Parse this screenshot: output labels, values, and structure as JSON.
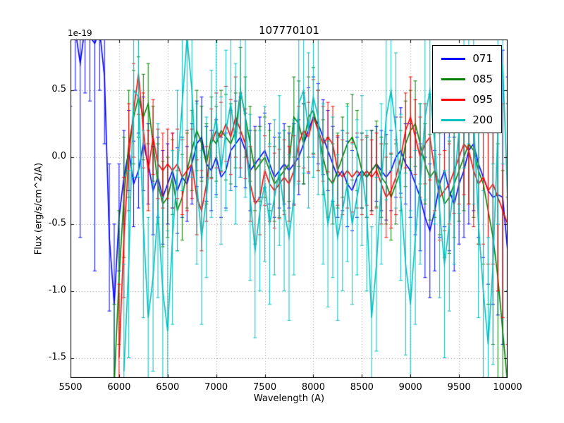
{
  "chart_data": {
    "type": "line",
    "title": "107770101",
    "xlabel": "Wavelength (A)",
    "ylabel": "Flux (erg/s/cm^2/A)",
    "y_offset_label": "1e-19",
    "xlim": [
      5500,
      10000
    ],
    "ylim": [
      -1.65,
      0.88
    ],
    "grid": true,
    "grid_color": "#999999",
    "frame_color": "#000000",
    "xticks": [
      {
        "value": 5500,
        "label": "5500"
      },
      {
        "value": 6000,
        "label": "6000"
      },
      {
        "value": 6500,
        "label": "6500"
      },
      {
        "value": 7000,
        "label": "7000"
      },
      {
        "value": 7500,
        "label": "7500"
      },
      {
        "value": 8000,
        "label": "8000"
      },
      {
        "value": 8500,
        "label": "8500"
      },
      {
        "value": 9000,
        "label": "9000"
      },
      {
        "value": 9500,
        "label": "9500"
      },
      {
        "value": 10000,
        "label": "10000"
      }
    ],
    "yticks": [
      {
        "value": 0.5,
        "label": "0.5"
      },
      {
        "value": 0.0,
        "label": "0.0"
      },
      {
        "value": -0.5,
        "label": "-0.5"
      },
      {
        "value": -1.0,
        "label": "-1.0"
      },
      {
        "value": -1.5,
        "label": "-1.5"
      }
    ],
    "legend": {
      "position": "upper right",
      "entries": [
        {
          "label": "071",
          "color": "#0000ff"
        },
        {
          "label": "085",
          "color": "#008000"
        },
        {
          "label": "095",
          "color": "#ff0000"
        },
        {
          "label": "200",
          "color": "#00bfbf"
        }
      ]
    },
    "series": [
      {
        "name": "071",
        "color": "#0000ff",
        "x0": 5500,
        "dx": 50,
        "y": [
          0.88,
          0.95,
          0.7,
          0.98,
          0.9,
          0.85,
          0.95,
          0.6,
          -0.6,
          -1.1,
          -0.45,
          -0.15,
          0.05,
          -0.2,
          -0.1,
          0.1,
          -0.05,
          -0.25,
          -0.15,
          -0.3,
          -0.2,
          -0.1,
          -0.25,
          -0.15,
          -0.2,
          -0.05,
          0.1,
          0.15,
          -0.05,
          -0.1,
          0.0,
          -0.15,
          -0.1,
          0.05,
          0.1,
          0.15,
          0.05,
          -0.1,
          -0.05,
          0.0,
          0.05,
          -0.05,
          -0.15,
          -0.1,
          -0.05,
          -0.1,
          -0.05,
          0.0,
          0.1,
          0.2,
          0.3,
          0.25,
          0.15,
          0.05,
          -0.05,
          -0.15,
          -0.1,
          -0.2,
          -0.25,
          -0.15,
          -0.1,
          -0.15,
          -0.1,
          -0.05,
          -0.1,
          -0.15,
          -0.1,
          0.0,
          0.05,
          -0.05,
          -0.1,
          -0.2,
          -0.3,
          -0.45,
          -0.55,
          -0.4,
          -0.2,
          -0.1,
          -0.25,
          -0.35,
          -0.2,
          -0.1,
          0.05,
          0.1,
          -0.05,
          -0.15,
          -0.25,
          -0.3,
          -0.28,
          -0.3,
          -0.7
        ],
        "err": [
          0.5,
          0.45,
          1.3,
          0.5,
          0.48,
          1.7,
          0.45,
          0.5,
          0.55,
          0.6,
          0.4,
          0.35,
          0.3,
          0.32,
          0.28,
          0.35,
          0.3,
          0.33,
          0.3,
          0.35,
          0.3,
          0.28,
          0.32,
          0.3,
          0.28,
          0.3,
          0.32,
          0.3,
          0.28,
          0.3,
          0.28,
          0.3,
          0.28,
          0.3,
          0.32,
          0.3,
          0.28,
          0.3,
          0.28,
          0.3,
          0.28,
          0.3,
          0.3,
          0.28,
          0.3,
          0.28,
          0.3,
          0.28,
          0.3,
          0.32,
          0.3,
          0.3,
          0.28,
          0.3,
          0.28,
          0.3,
          0.3,
          0.32,
          0.3,
          0.3,
          0.28,
          0.3,
          0.3,
          0.28,
          0.3,
          0.32,
          0.3,
          0.3,
          0.32,
          0.3,
          0.35,
          0.38,
          0.4,
          0.45,
          0.5,
          0.45,
          0.4,
          0.42,
          0.45,
          0.5,
          0.45,
          0.5,
          0.55,
          0.5,
          0.55,
          0.6,
          0.7,
          0.8,
          0.9,
          1.1,
          1.3
        ]
      },
      {
        "name": "085",
        "color": "#008000",
        "x0": 5950,
        "dx": 50,
        "y": [
          -1.7,
          -0.9,
          -0.3,
          0.1,
          0.3,
          0.45,
          0.3,
          0.4,
          0.1,
          -0.2,
          -0.35,
          -0.3,
          -0.15,
          -0.4,
          -0.3,
          -0.1,
          0.05,
          0.2,
          0.1,
          -0.05,
          0.15,
          0.1,
          0.2,
          0.15,
          0.1,
          0.2,
          0.5,
          0.3,
          0.1,
          -0.1,
          -0.05,
          0.0,
          -0.1,
          -0.2,
          -0.15,
          -0.1,
          -0.05,
          0.3,
          0.25,
          0.1,
          0.3,
          0.35,
          0.2,
          0.0,
          -0.15,
          -0.2,
          -0.1,
          0.0,
          0.1,
          0.15,
          0.05,
          -0.1,
          -0.15,
          -0.1,
          -0.05,
          -0.15,
          -0.2,
          -0.3,
          -0.2,
          -0.1,
          0.1,
          0.2,
          0.25,
          0.1,
          -0.05,
          -0.15,
          -0.1,
          -0.2,
          -0.35,
          -0.3,
          -0.2,
          -0.1,
          0.0,
          0.1,
          0.05,
          -0.1,
          -0.2,
          -0.4,
          -0.6,
          -0.9,
          -1.3,
          -1.7
        ],
        "err": [
          0.6,
          0.5,
          0.45,
          0.4,
          0.35,
          0.3,
          0.32,
          0.3,
          0.28,
          0.3,
          0.32,
          0.3,
          0.28,
          0.3,
          0.32,
          0.28,
          0.3,
          0.3,
          0.28,
          0.3,
          0.3,
          0.28,
          0.3,
          0.32,
          0.3,
          0.28,
          0.32,
          0.3,
          0.28,
          0.3,
          0.28,
          0.3,
          0.3,
          0.28,
          0.3,
          0.3,
          0.28,
          0.3,
          0.32,
          0.3,
          0.3,
          0.32,
          0.3,
          0.28,
          0.3,
          0.3,
          0.28,
          0.3,
          0.3,
          0.32,
          0.3,
          0.28,
          0.3,
          0.3,
          0.32,
          0.3,
          0.3,
          0.32,
          0.3,
          0.3,
          0.32,
          0.3,
          0.32,
          0.3,
          0.3,
          0.32,
          0.35,
          0.38,
          0.4,
          0.42,
          0.4,
          0.38,
          0.4,
          0.45,
          0.5,
          0.55,
          0.6,
          0.7,
          0.8,
          1.0,
          1.2,
          1.4
        ]
      },
      {
        "name": "095",
        "color": "#ff0000",
        "x0": 6000,
        "dx": 50,
        "y": [
          -1.5,
          -0.6,
          0.0,
          0.35,
          0.62,
          0.2,
          -0.1,
          0.15,
          -0.05,
          -0.1,
          -0.05,
          -0.1,
          -0.05,
          -0.15,
          -0.1,
          -0.05,
          -0.3,
          -0.4,
          -0.2,
          0.1,
          0.2,
          0.15,
          0.25,
          0.15,
          0.3,
          0.2,
          0.1,
          -0.2,
          -0.35,
          -0.3,
          -0.1,
          -0.2,
          -0.25,
          -0.2,
          -0.15,
          -0.2,
          -0.1,
          0.1,
          0.2,
          0.15,
          0.3,
          0.2,
          0.1,
          0.15,
          0.1,
          -0.1,
          -0.15,
          -0.1,
          -0.15,
          -0.1,
          -0.15,
          -0.1,
          -0.15,
          -0.1,
          -0.2,
          -0.3,
          -0.25,
          -0.15,
          0.0,
          0.2,
          0.3,
          0.15,
          0.0,
          0.1,
          0.15,
          -0.1,
          -0.3,
          -0.25,
          -0.2,
          -0.1,
          0.0,
          0.1,
          0.05,
          -0.1,
          -0.2,
          -0.15,
          -0.25,
          -0.2,
          -0.3,
          -0.4,
          -0.5
        ],
        "err": [
          0.55,
          0.45,
          0.4,
          0.35,
          0.3,
          0.28,
          0.3,
          0.28,
          0.26,
          0.28,
          0.26,
          0.28,
          0.26,
          0.28,
          0.3,
          0.26,
          0.28,
          0.3,
          0.28,
          0.26,
          0.28,
          0.26,
          0.28,
          0.28,
          0.3,
          0.28,
          0.26,
          0.28,
          0.3,
          0.28,
          0.26,
          0.28,
          0.28,
          0.26,
          0.28,
          0.28,
          0.26,
          0.28,
          0.28,
          0.26,
          0.28,
          0.3,
          0.28,
          0.26,
          0.28,
          0.26,
          0.28,
          0.28,
          0.26,
          0.28,
          0.28,
          0.26,
          0.28,
          0.28,
          0.3,
          0.3,
          0.28,
          0.28,
          0.3,
          0.28,
          0.3,
          0.28,
          0.3,
          0.3,
          0.32,
          0.3,
          0.32,
          0.3,
          0.3,
          0.32,
          0.35,
          0.38,
          0.4,
          0.42,
          0.45,
          0.5,
          0.55,
          0.6,
          0.7,
          0.8,
          0.9
        ]
      },
      {
        "name": "200",
        "color": "#00bfbf",
        "x0": 6050,
        "dx": 50,
        "y": [
          -1.6,
          -0.8,
          0.5,
          0.45,
          -0.5,
          -1.2,
          -0.9,
          -0.4,
          -1.0,
          -1.3,
          -0.6,
          -0.1,
          0.4,
          0.9,
          0.5,
          -0.2,
          -0.6,
          -0.3,
          0.1,
          0.3,
          -0.1,
          0.2,
          0.4,
          0.1,
          0.5,
          0.3,
          -0.3,
          -0.7,
          -0.4,
          -0.2,
          -0.5,
          -0.3,
          -0.1,
          -0.4,
          -0.6,
          -0.3,
          0.4,
          0.5,
          0.2,
          0.45,
          0.3,
          -0.2,
          -0.5,
          -0.3,
          -0.6,
          -0.4,
          -0.2,
          -0.5,
          -0.3,
          -0.1,
          -0.4,
          -1.2,
          -0.8,
          -0.2,
          0.3,
          0.5,
          0.2,
          -0.3,
          -0.8,
          -1.1,
          -0.6,
          -0.2,
          0.3,
          0.5,
          0.1,
          -0.4,
          -0.8,
          -0.5,
          -0.2,
          0.2,
          0.6,
          0.8,
          0.3,
          -0.5,
          -1.0,
          -1.4,
          -0.8,
          0.2,
          0.7,
          -0.3
        ],
        "err": [
          0.8,
          0.7,
          0.65,
          0.6,
          0.7,
          0.75,
          0.7,
          0.65,
          0.7,
          0.75,
          0.65,
          0.6,
          0.65,
          0.7,
          0.65,
          0.6,
          0.65,
          0.6,
          0.55,
          0.6,
          0.55,
          0.6,
          0.65,
          0.6,
          0.65,
          0.6,
          0.62,
          0.65,
          0.6,
          0.58,
          0.6,
          0.58,
          0.56,
          0.6,
          0.62,
          0.58,
          0.6,
          0.62,
          0.58,
          0.6,
          0.58,
          0.6,
          0.62,
          0.6,
          0.62,
          0.6,
          0.58,
          0.6,
          0.58,
          0.56,
          0.6,
          0.68,
          0.65,
          0.6,
          0.62,
          0.6,
          0.58,
          0.62,
          0.68,
          0.7,
          0.65,
          0.6,
          0.62,
          0.65,
          0.6,
          0.65,
          0.7,
          0.65,
          0.6,
          0.62,
          0.68,
          0.7,
          0.65,
          0.7,
          0.75,
          0.8,
          0.75,
          0.7,
          0.75,
          0.7
        ]
      }
    ]
  }
}
